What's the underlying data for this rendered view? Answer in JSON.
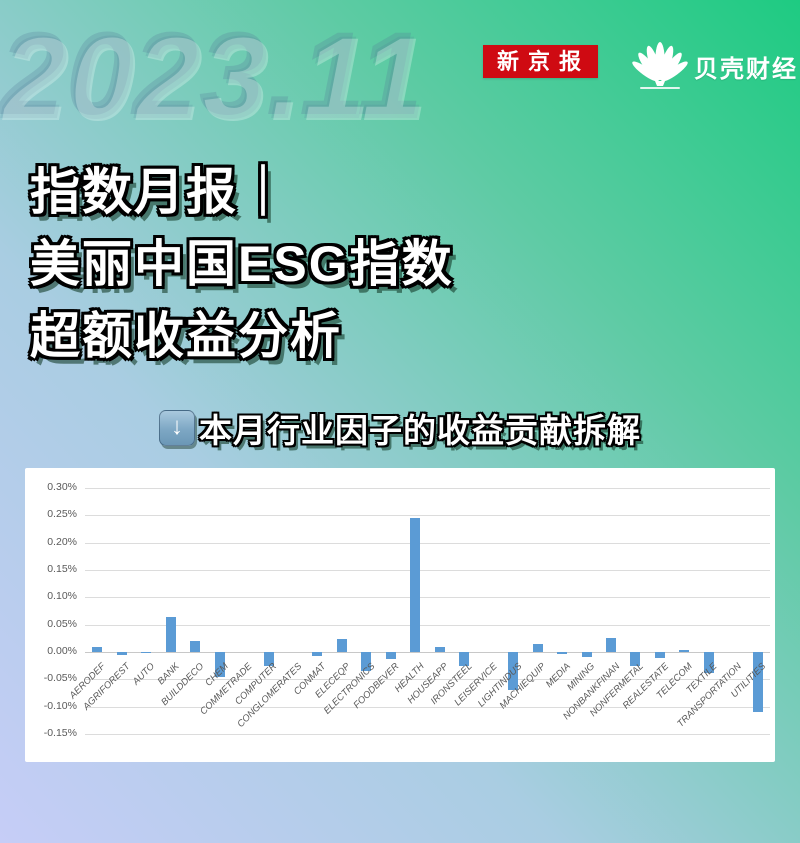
{
  "header": {
    "year": "2023.11",
    "press_badge": "新京报",
    "logo_text": "贝壳财经"
  },
  "title": {
    "line1": "指数月报｜",
    "line2": "美丽中国ESG指数",
    "line3": "超额收益分析"
  },
  "subtitle": {
    "arrow_icon": "↓",
    "text": "本月行业因子的收益贡献拆解"
  },
  "colors": {
    "bar": "#5b9bd5",
    "badge_red": "#cf0a12",
    "gradient_start": "#c6cdf7",
    "gradient_end": "#1ecb82"
  },
  "chart_data": {
    "type": "bar",
    "title": "",
    "xlabel": "",
    "ylabel": "",
    "unit": "%",
    "grid": true,
    "legend": false,
    "ylim": [
      -0.15,
      0.3
    ],
    "ytick_step": 0.05,
    "ytick_labels": [
      "0.30%",
      "0.25%",
      "0.20%",
      "0.15%",
      "0.10%",
      "0.05%",
      "0.00%",
      "-0.05%",
      "-0.10%",
      "-0.15%"
    ],
    "categories": [
      "AERODEF",
      "AGRIFOREST",
      "AUTO",
      "BANK",
      "BUILDDECO",
      "CHEM",
      "COMMETRADE",
      "COMPUTER",
      "CONGLOMERATES",
      "CONMAT",
      "ELECEQP",
      "ELECTRONICS",
      "FOODBEVER",
      "HEALTH",
      "HOUSEAPP",
      "IRONSTEEL",
      "LEISERVICE",
      "LIGHTINDUS",
      "MACHIEQUIP",
      "MEDIA",
      "MINING",
      "NONBANKFINAN",
      "NONFERMETAL",
      "REALESTATE",
      "TELECOM",
      "TEXTILE",
      "TRANSPORTATION",
      "UTILITIES"
    ],
    "values": [
      0.01,
      -0.005,
      -0.002,
      0.065,
      0.02,
      -0.045,
      0.0,
      -0.025,
      0.0,
      -0.007,
      0.023,
      -0.035,
      -0.012,
      0.245,
      0.009,
      -0.025,
      0.0,
      -0.07,
      0.015,
      -0.004,
      -0.009,
      0.025,
      -0.025,
      -0.011,
      0.003,
      -0.038,
      0.0,
      -0.11
    ]
  }
}
